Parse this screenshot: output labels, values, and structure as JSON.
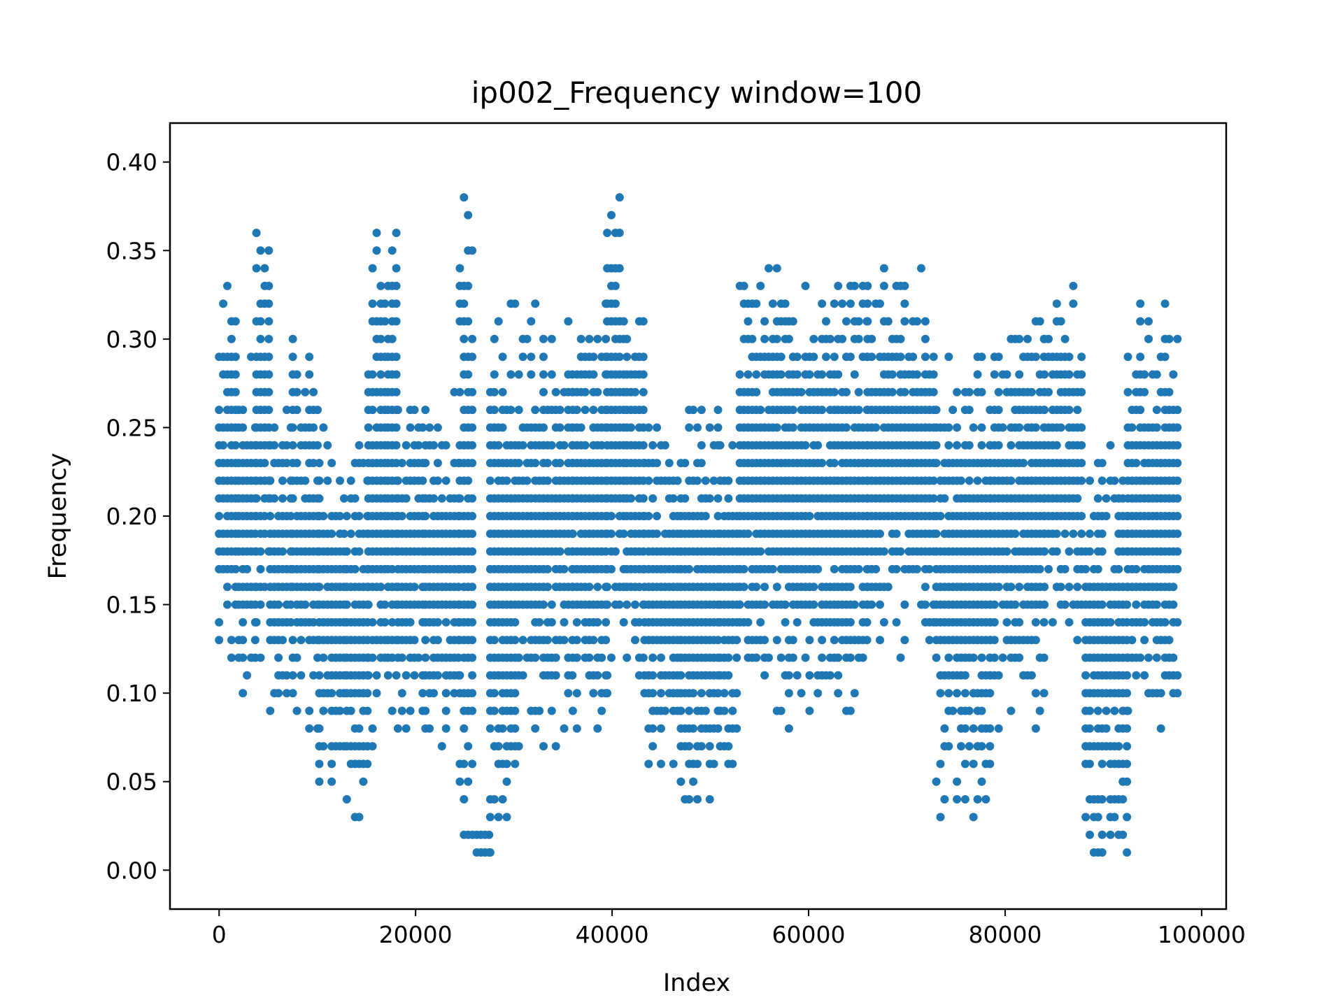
{
  "chart_data": {
    "type": "scatter",
    "title": "ip002_Frequency window=100",
    "xlabel": "Index",
    "ylabel": "Frequency",
    "xlim": [
      -5000,
      102500
    ],
    "ylim": [
      -0.022,
      0.422
    ],
    "xticks": [
      0,
      20000,
      40000,
      60000,
      80000,
      100000
    ],
    "xtick_labels": [
      "0",
      "20000",
      "40000",
      "60000",
      "80000",
      "100000"
    ],
    "yticks": [
      0.0,
      0.05,
      0.1,
      0.15,
      0.2,
      0.25,
      0.3,
      0.35,
      0.4
    ],
    "ytick_labels": [
      "0.00",
      "0.05",
      "0.10",
      "0.15",
      "0.20",
      "0.25",
      "0.30",
      "0.35",
      "0.40"
    ],
    "grid": false,
    "legend": "none",
    "marker_color": "#1f77b4",
    "value_step": 0.01,
    "series": [
      {
        "points_description": "frequency value ranges by index segment",
        "segments": [
          {
            "x0": 0,
            "x1": 2000,
            "ymin": 0.12,
            "ymax": 0.34
          },
          {
            "x0": 2000,
            "x1": 3800,
            "ymin": 0.1,
            "ymax": 0.3
          },
          {
            "x0": 3800,
            "x1": 5200,
            "ymin": 0.12,
            "ymax": 0.38
          },
          {
            "x0": 5200,
            "x1": 7500,
            "ymin": 0.07,
            "ymax": 0.27
          },
          {
            "x0": 7500,
            "x1": 10200,
            "ymin": 0.07,
            "ymax": 0.3
          },
          {
            "x0": 10200,
            "x1": 13000,
            "ymin": 0.04,
            "ymax": 0.26
          },
          {
            "x0": 13000,
            "x1": 15200,
            "ymin": 0.02,
            "ymax": 0.24
          },
          {
            "x0": 15200,
            "x1": 17200,
            "ymin": 0.06,
            "ymax": 0.36
          },
          {
            "x0": 17200,
            "x1": 18200,
            "ymin": 0.08,
            "ymax": 0.37
          },
          {
            "x0": 18200,
            "x1": 21000,
            "ymin": 0.07,
            "ymax": 0.28
          },
          {
            "x0": 21000,
            "x1": 24500,
            "ymin": 0.06,
            "ymax": 0.27
          },
          {
            "x0": 24500,
            "x1": 25800,
            "ymin": 0.0,
            "ymax": 0.38
          },
          {
            "x0": 25800,
            "x1": 27600,
            "ymin": 0.0,
            "ymax": 0.03
          },
          {
            "x0": 27600,
            "x1": 30500,
            "ymin": 0.0,
            "ymax": 0.32
          },
          {
            "x0": 30500,
            "x1": 36000,
            "ymin": 0.07,
            "ymax": 0.32
          },
          {
            "x0": 36000,
            "x1": 39500,
            "ymin": 0.07,
            "ymax": 0.33
          },
          {
            "x0": 39500,
            "x1": 41500,
            "ymin": 0.1,
            "ymax": 0.4
          },
          {
            "x0": 41500,
            "x1": 43300,
            "ymin": 0.1,
            "ymax": 0.34
          },
          {
            "x0": 43300,
            "x1": 47000,
            "ymin": 0.05,
            "ymax": 0.26
          },
          {
            "x0": 47000,
            "x1": 51000,
            "ymin": 0.03,
            "ymax": 0.27
          },
          {
            "x0": 51000,
            "x1": 53000,
            "ymin": 0.05,
            "ymax": 0.25
          },
          {
            "x0": 53000,
            "x1": 58000,
            "ymin": 0.09,
            "ymax": 0.35
          },
          {
            "x0": 58000,
            "x1": 63000,
            "ymin": 0.08,
            "ymax": 0.34
          },
          {
            "x0": 63000,
            "x1": 66000,
            "ymin": 0.07,
            "ymax": 0.35
          },
          {
            "x0": 66000,
            "x1": 73000,
            "ymin": 0.12,
            "ymax": 0.34
          },
          {
            "x0": 73000,
            "x1": 78500,
            "ymin": 0.02,
            "ymax": 0.3
          },
          {
            "x0": 78500,
            "x1": 84000,
            "ymin": 0.08,
            "ymax": 0.32
          },
          {
            "x0": 84000,
            "x1": 88200,
            "ymin": 0.12,
            "ymax": 0.33
          },
          {
            "x0": 88200,
            "x1": 92500,
            "ymin": 0.0,
            "ymax": 0.25
          },
          {
            "x0": 92500,
            "x1": 97800,
            "ymin": 0.07,
            "ymax": 0.33
          }
        ]
      }
    ]
  }
}
